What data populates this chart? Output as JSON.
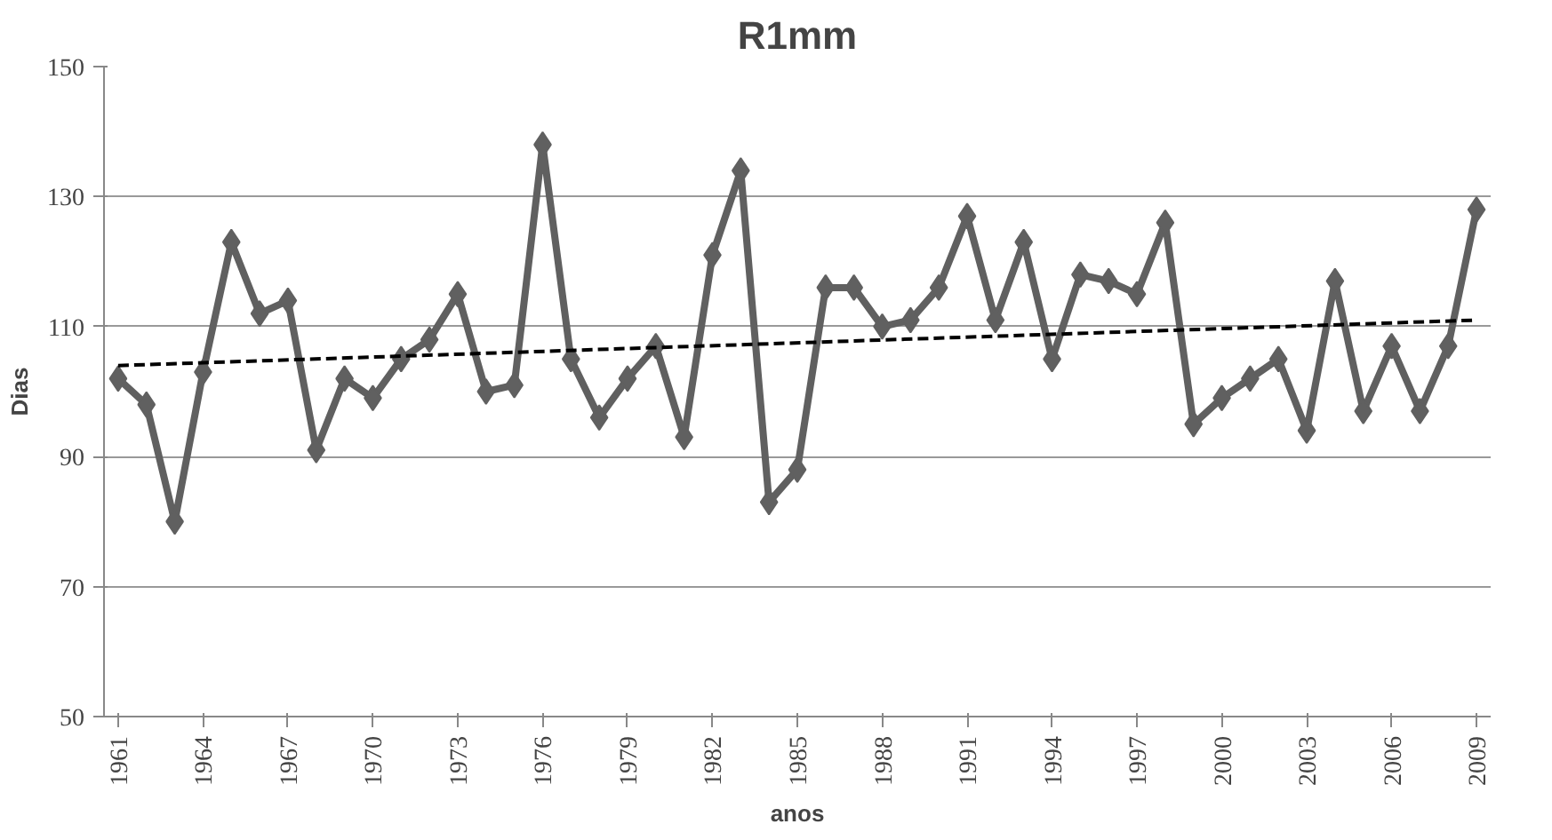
{
  "chart_data": {
    "type": "line",
    "title": "R1mm",
    "xlabel": "anos",
    "ylabel": "Dias",
    "x": [
      1961,
      1962,
      1963,
      1964,
      1965,
      1966,
      1967,
      1968,
      1969,
      1970,
      1971,
      1972,
      1973,
      1974,
      1975,
      1976,
      1977,
      1978,
      1979,
      1980,
      1981,
      1982,
      1983,
      1984,
      1985,
      1986,
      1987,
      1988,
      1989,
      1990,
      1991,
      1992,
      1993,
      1994,
      1995,
      1996,
      1997,
      1998,
      1999,
      2000,
      2001,
      2002,
      2003,
      2004,
      2005,
      2006,
      2007,
      2008,
      2009
    ],
    "series": [
      {
        "color": "#606060",
        "marker": "diamond",
        "line_style": "solid",
        "values": [
          102,
          98,
          80,
          103,
          123,
          112,
          114,
          91,
          102,
          99,
          105,
          108,
          115,
          100,
          101,
          138,
          105,
          96,
          102,
          107,
          93,
          121,
          134,
          83,
          88,
          116,
          116,
          110,
          111,
          116,
          127,
          111,
          123,
          105,
          118,
          117,
          115,
          126,
          95,
          99,
          102,
          105,
          94,
          117,
          97,
          107,
          97,
          107,
          128
        ]
      },
      {
        "type": "line",
        "color": "#000000",
        "marker": "none",
        "line_style": "dashed",
        "x": [
          1961,
          2009
        ],
        "values": [
          104,
          111
        ]
      }
    ],
    "xlim": [
      1960.5,
      2009.5
    ],
    "xticks": [
      1961,
      1964,
      1967,
      1970,
      1973,
      1976,
      1979,
      1982,
      1985,
      1988,
      1991,
      1994,
      1997,
      2000,
      2003,
      2006,
      2009
    ],
    "ylim": [
      50,
      150
    ],
    "yticks": [
      50,
      70,
      90,
      110,
      130,
      150
    ],
    "grid": "y"
  }
}
